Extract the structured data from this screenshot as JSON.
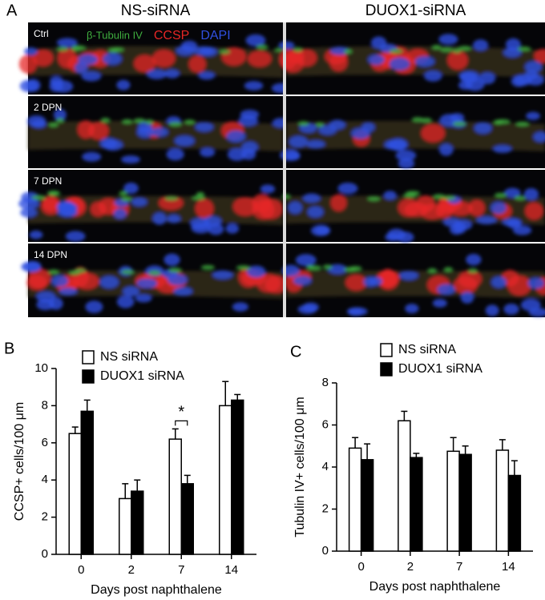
{
  "panel_a": {
    "label": "A",
    "columns": [
      "NS-siRNA",
      "DUOX1-siRNA"
    ],
    "rows": [
      "Ctrl",
      "2 DPN",
      "7 DPN",
      "14 DPN"
    ],
    "stains": [
      {
        "text": "β-Tubulin IV",
        "color": "#3fae3f"
      },
      {
        "text": "CCSP",
        "color": "#e52626"
      },
      {
        "text": "DAPI",
        "color": "#3050e0"
      }
    ]
  },
  "chart_data": [
    {
      "panel": "B",
      "type": "bar",
      "ylabel": "CCSP+ cells/100 μm",
      "xlabel": "Days post naphthalene",
      "categories": [
        "0",
        "2",
        "7",
        "14"
      ],
      "ylim": [
        0,
        10
      ],
      "yticks": [
        0,
        2,
        4,
        6,
        8,
        10
      ],
      "series": [
        {
          "name": "NS siRNA",
          "color": "#ffffff",
          "values": [
            6.5,
            3.0,
            6.2,
            8.0
          ],
          "errors": [
            0.35,
            0.8,
            0.55,
            1.3
          ]
        },
        {
          "name": "DUOX1 siRNA",
          "color": "#000000",
          "values": [
            7.7,
            3.4,
            3.8,
            8.3
          ],
          "errors": [
            0.6,
            0.6,
            0.45,
            0.3
          ]
        }
      ],
      "annotations": [
        {
          "text": "*",
          "category": "7"
        }
      ]
    },
    {
      "panel": "C",
      "type": "bar",
      "ylabel": "Tubulin IV+ cells/100 μm",
      "xlabel": "Days post naphthalene",
      "categories": [
        "0",
        "2",
        "7",
        "14"
      ],
      "ylim": [
        0,
        8
      ],
      "yticks": [
        0,
        2,
        4,
        6,
        8
      ],
      "series": [
        {
          "name": "NS siRNA",
          "color": "#ffffff",
          "values": [
            4.9,
            6.2,
            4.75,
            4.8
          ],
          "errors": [
            0.5,
            0.45,
            0.65,
            0.5
          ]
        },
        {
          "name": "DUOX1 siRNA",
          "color": "#000000",
          "values": [
            4.35,
            4.45,
            4.6,
            3.6
          ],
          "errors": [
            0.75,
            0.2,
            0.4,
            0.7
          ]
        }
      ],
      "annotations": []
    }
  ]
}
